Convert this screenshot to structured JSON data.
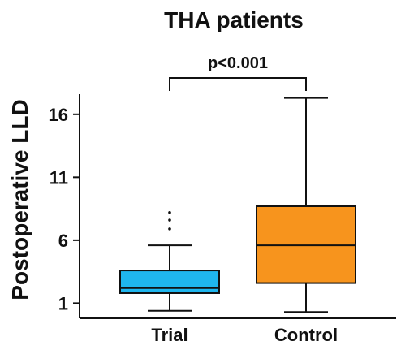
{
  "chart_data": {
    "type": "box",
    "title": "THA patients",
    "xlabel": "",
    "ylabel": "Postoperative LLD",
    "yticks": [
      1,
      6,
      11,
      16
    ],
    "ylim": [
      -0.2,
      17.6
    ],
    "grid": false,
    "categories": [
      "Trial",
      "Control"
    ],
    "series": [
      {
        "category": "Trial",
        "color": "#1fb6ee",
        "min": 0.4,
        "q1": 1.8,
        "median": 2.2,
        "q3": 3.6,
        "max": 5.6,
        "outliers": [
          6.9,
          7.6,
          8.2
        ]
      },
      {
        "category": "Control",
        "color": "#f7941d",
        "min": 0.3,
        "q1": 2.6,
        "median": 5.6,
        "q3": 8.7,
        "max": 17.3
      }
    ],
    "annotations": [
      {
        "text": "p<0.001",
        "between": [
          "Trial",
          "Control"
        ]
      }
    ]
  }
}
